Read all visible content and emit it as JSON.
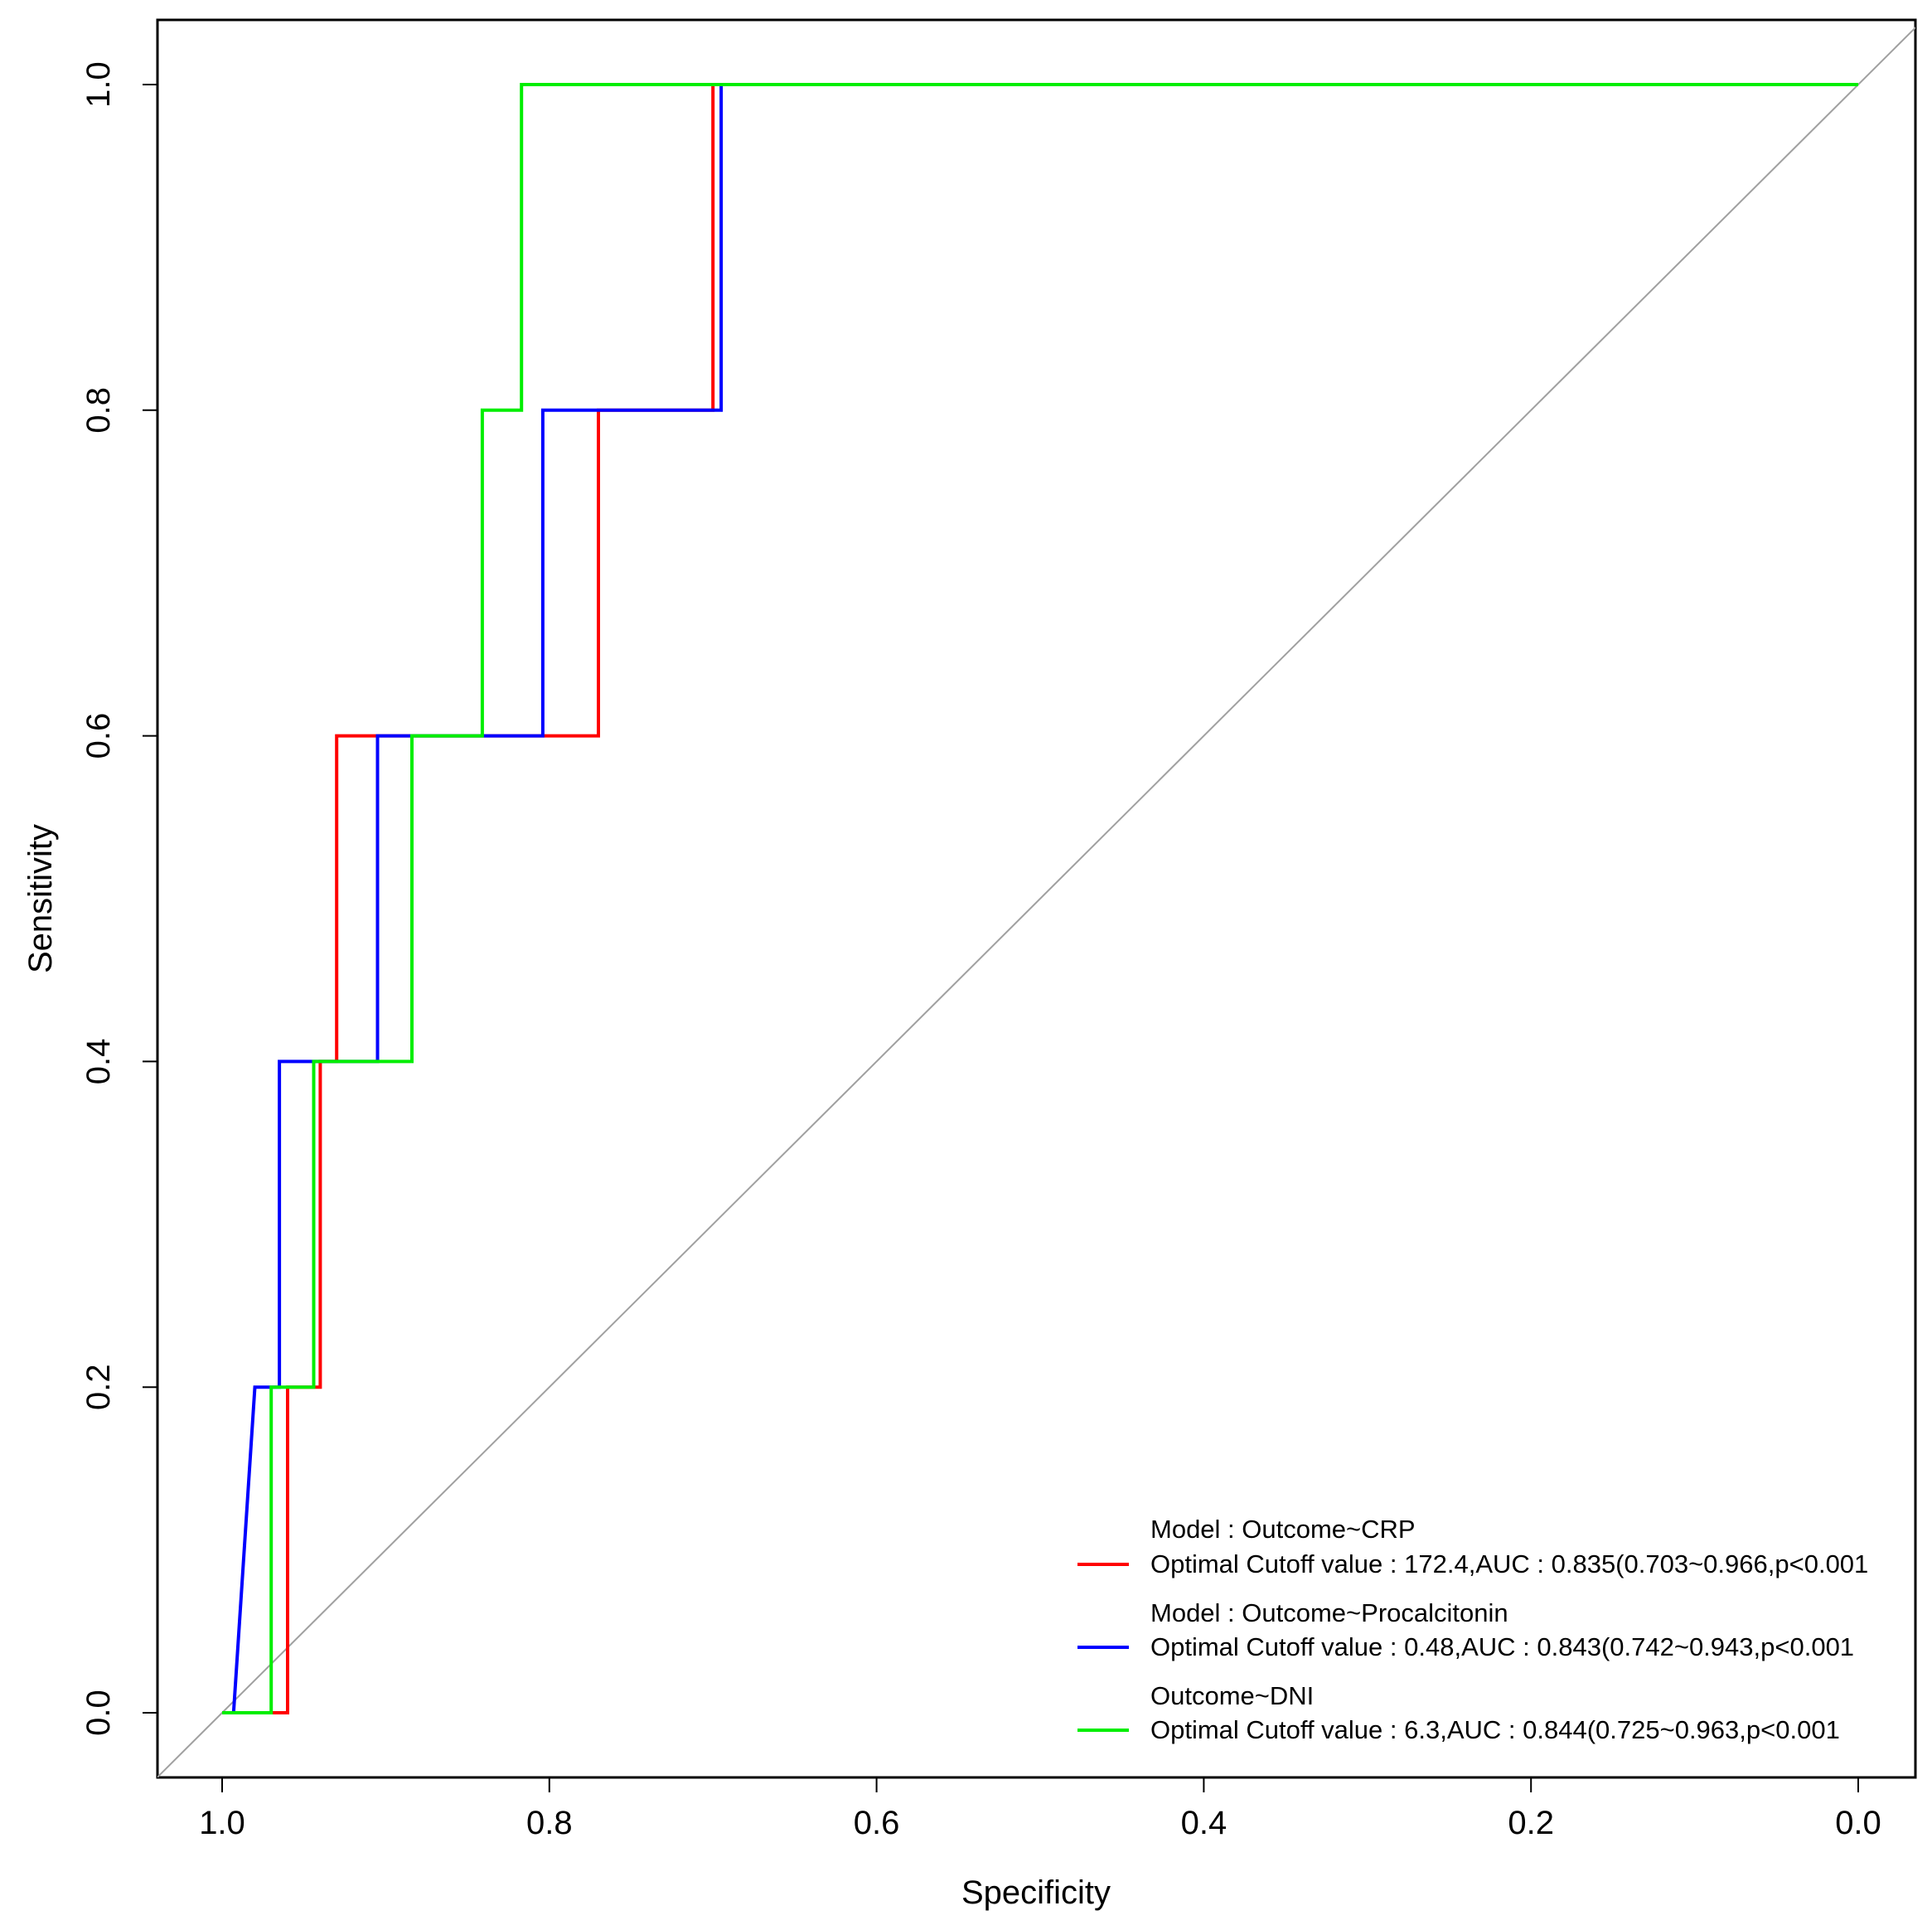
{
  "chart_data": {
    "type": "line",
    "subtype": "roc",
    "title": "",
    "xlabel": "Specificity",
    "ylabel": "Sensitivity",
    "xlim": [
      1.0,
      0.0
    ],
    "ylim": [
      0.0,
      1.0
    ],
    "x_reversed": true,
    "grid": false,
    "legend_position": "bottom-right",
    "x_ticks": [
      "1.0",
      "0.8",
      "0.6",
      "0.4",
      "0.2",
      "0.0"
    ],
    "y_ticks": [
      "0.0",
      "0.2",
      "0.4",
      "0.6",
      "0.8",
      "1.0"
    ],
    "reference_line": {
      "from": [
        1.0,
        0.0
      ],
      "to": [
        0.0,
        1.0
      ],
      "color": "#a0a0a0"
    },
    "series": [
      {
        "name": "Model : Outcome~CRP",
        "legend_title": "Model : Outcome~CRP",
        "legend_label": "Optimal Cutoff value : 172.4,AUC : 0.835(0.703~0.966,p<0.001",
        "color": "#ff0000",
        "specificity": [
          1.0,
          0.96,
          0.96,
          0.94,
          0.94,
          0.93,
          0.93,
          0.89,
          0.89,
          0.77,
          0.77,
          0.7,
          0.7,
          0.0
        ],
        "sensitivity": [
          0.0,
          0.0,
          0.2,
          0.2,
          0.4,
          0.4,
          0.6,
          0.6,
          0.6,
          0.6,
          0.8,
          0.8,
          1.0,
          1.0
        ]
      },
      {
        "name": "Model : Outcome~Procalcitonin",
        "legend_title": "Model : Outcome~Procalcitonin",
        "legend_label": "Optimal Cutoff value : 0.48,AUC : 0.843(0.742~0.943,p<0.001",
        "color": "#0000ff",
        "specificity": [
          1.0,
          0.993,
          0.98,
          0.965,
          0.965,
          0.905,
          0.905,
          0.804,
          0.804,
          0.695,
          0.695,
          0.0
        ],
        "sensitivity": [
          0.0,
          0.0,
          0.2,
          0.2,
          0.4,
          0.4,
          0.6,
          0.6,
          0.8,
          0.8,
          1.0,
          1.0
        ]
      },
      {
        "name": "Outcome~DNI",
        "legend_title": "Outcome~DNI",
        "legend_label": "Optimal Cutoff value : 6.3,AUC : 0.844(0.725~0.963,p<0.001",
        "color": "#00ee00",
        "specificity": [
          1.0,
          0.97,
          0.97,
          0.944,
          0.944,
          0.884,
          0.884,
          0.841,
          0.841,
          0.817,
          0.817,
          0.0
        ],
        "sensitivity": [
          0.0,
          0.0,
          0.2,
          0.2,
          0.4,
          0.4,
          0.6,
          0.6,
          0.8,
          0.8,
          1.0,
          1.0
        ]
      }
    ]
  }
}
